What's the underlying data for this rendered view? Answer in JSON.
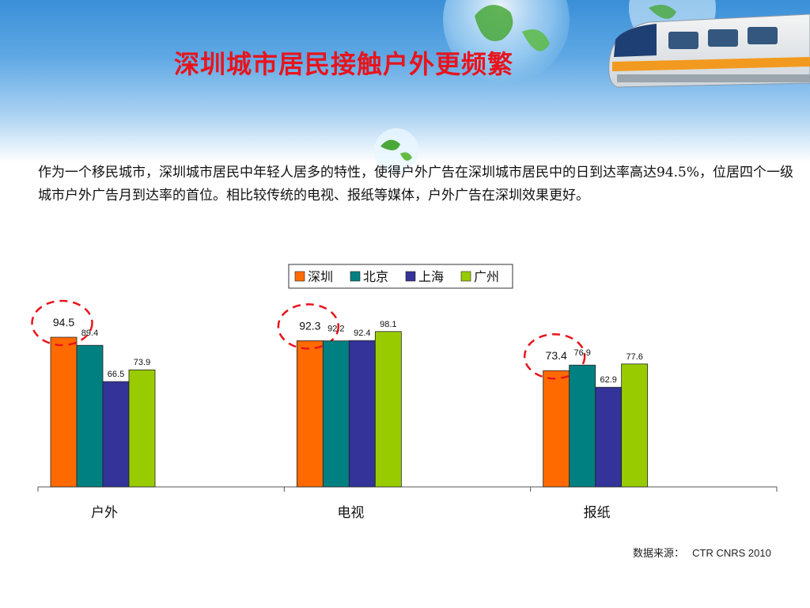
{
  "slide": {
    "title": "深圳城市居民接触户外更频繁",
    "body": "作为一个移民城市，深圳城市居民中年轻人居多的特性，使得户外广告在深圳城市居民中的日到达率高达94.5%，位居四个一级城市户外广告月到达率的首位。相比较传统的电视、报纸等媒体，户外广告在深圳效果更好。",
    "source_label": "数据来源：",
    "source_value": "CTR CNRS 2010"
  },
  "chart_data": {
    "type": "bar",
    "categories": [
      "户外",
      "电视",
      "报纸"
    ],
    "series": [
      {
        "name": "深圳",
        "color": "#ff6a00",
        "values": [
          94.5,
          92.3,
          73.4
        ]
      },
      {
        "name": "北京",
        "color": "#008080",
        "values": [
          89.4,
          92.2,
          76.9
        ]
      },
      {
        "name": "上海",
        "color": "#333399",
        "values": [
          66.5,
          92.4,
          62.9
        ]
      },
      {
        "name": "广州",
        "color": "#99cc00",
        "values": [
          73.9,
          98.1,
          77.6
        ]
      }
    ],
    "highlighted_series": "深圳",
    "ylim": [
      0,
      100
    ],
    "legend_position": "top",
    "grid": false
  }
}
